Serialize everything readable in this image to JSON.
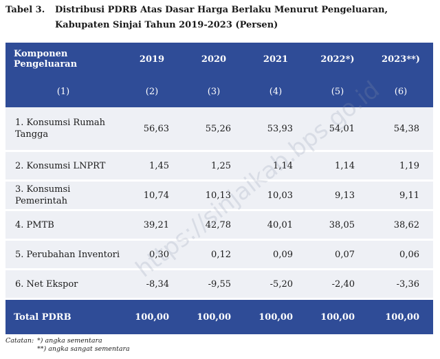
{
  "caption": {
    "number": "Tabel 3.",
    "title": "Distribusi PDRB Atas Dasar Harga Berlaku Menurut Pengeluaran, Kabupaten Sinjai Tahun 2019-2023 (Persen)"
  },
  "table": {
    "headers": [
      "Komponen Pengeluaran",
      "2019",
      "2020",
      "2021",
      "2022*)",
      "2023**)"
    ],
    "column_index": [
      "(1)",
      "(2)",
      "(3)",
      "(4)",
      "(5)",
      "(6)"
    ],
    "rows": [
      {
        "label": "1. Konsumsi Rumah Tangga",
        "values": [
          "56,63",
          "55,26",
          "53,93",
          "54,01",
          "54,38"
        ]
      },
      {
        "label": "2. Konsumsi LNPRT",
        "values": [
          "1,45",
          "1,25",
          "1,14",
          "1,14",
          "1,19"
        ]
      },
      {
        "label": "3. Konsumsi Pemerintah",
        "values": [
          "10,74",
          "10,13",
          "10,03",
          "9,13",
          "9,11"
        ]
      },
      {
        "label": "4. PMTB",
        "values": [
          "39,21",
          "42,78",
          "40,01",
          "38,05",
          "38,62"
        ]
      },
      {
        "label": "5. Perubahan Inventori",
        "values": [
          "0,30",
          "0,12",
          "0,09",
          "0,07",
          "0,06"
        ]
      },
      {
        "label": "6. Net Ekspor",
        "values": [
          "-8,34",
          "-9,55",
          "-5,20",
          "-2,40",
          "-3,36"
        ]
      }
    ],
    "total": {
      "label": "Total PDRB",
      "values": [
        "100,00",
        "100,00",
        "100,00",
        "100,00",
        "100,00"
      ]
    }
  },
  "notes": {
    "label": "Catatan:",
    "items": [
      "*) angka sementara",
      "**) angka sangat sementara"
    ]
  },
  "watermark": "https://sinjaikab.bps.go.id",
  "colors": {
    "header_bg": "#2f4c97",
    "row_bg": "#eef0f5"
  }
}
